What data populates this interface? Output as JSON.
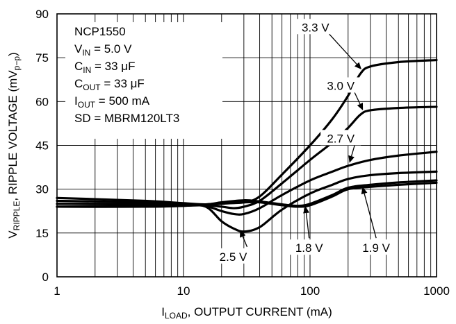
{
  "chart_data": {
    "type": "line",
    "xscale": "log",
    "xlim": [
      1,
      1000
    ],
    "ylim": [
      0,
      90
    ],
    "grid": true,
    "x_ticks": [
      {
        "value": 1,
        "label": "1"
      },
      {
        "value": 10,
        "label": "10"
      },
      {
        "value": 100,
        "label": "100"
      },
      {
        "value": 1000,
        "label": "1000"
      }
    ],
    "y_ticks": [
      {
        "value": 0,
        "label": "0"
      },
      {
        "value": 15,
        "label": "15"
      },
      {
        "value": 30,
        "label": "30"
      },
      {
        "value": 45,
        "label": "45"
      },
      {
        "value": 60,
        "label": "60"
      },
      {
        "value": 75,
        "label": "75"
      },
      {
        "value": 90,
        "label": "90"
      }
    ],
    "xlabel": {
      "main": "I",
      "sub": "LOAD",
      "rest": ", OUTPUT CURRENT (mA)"
    },
    "ylabel": {
      "main": "V",
      "sub": "RIPPLE",
      "rest": ", RIPPLE VOLTAGE (mV",
      "sub2": "p−p",
      "end": ")"
    },
    "conditions": [
      {
        "main": "NCP1550",
        "sub": "",
        "rest": ""
      },
      {
        "main": "V",
        "sub": "IN",
        "rest": " = 5.0 V"
      },
      {
        "main": "C",
        "sub": "IN",
        "rest": " = 33 μF"
      },
      {
        "main": "C",
        "sub": "OUT",
        "rest": " = 33 μF"
      },
      {
        "main": "I",
        "sub": "OUT",
        "rest": " = 500 mA"
      },
      {
        "main": "SD = MBRM120LT3",
        "sub": "",
        "rest": ""
      }
    ],
    "series": [
      {
        "name": "3.3 V",
        "x": [
          1,
          5,
          10,
          15,
          20,
          30,
          40,
          60,
          100,
          150,
          200,
          250,
          300,
          500,
          1000
        ],
        "y": [
          24,
          24,
          24.3,
          24.8,
          25.2,
          25.5,
          27.5,
          35,
          45,
          54,
          62,
          69.5,
          72,
          73.5,
          74.2
        ]
      },
      {
        "name": "3.0 V",
        "x": [
          1,
          5,
          10,
          15,
          20,
          25,
          30,
          40,
          60,
          100,
          150,
          200,
          250,
          300,
          500,
          1000
        ],
        "y": [
          24,
          24,
          24.3,
          24.5,
          24,
          23.5,
          24,
          26,
          32,
          40,
          46,
          51,
          55.5,
          57,
          57.8,
          58.2
        ]
      },
      {
        "name": "2.7 V",
        "x": [
          1,
          5,
          10,
          15,
          20,
          25,
          30,
          40,
          60,
          100,
          150,
          200,
          300,
          500,
          1000
        ],
        "y": [
          25,
          25,
          24.8,
          24.2,
          22.5,
          21.5,
          21.5,
          23.5,
          28,
          33,
          36,
          38,
          40,
          41.5,
          42.8
        ]
      },
      {
        "name": "2.5 V",
        "x": [
          1,
          5,
          10,
          15,
          20,
          25,
          30,
          40,
          60,
          100,
          150,
          200,
          300,
          500,
          1000
        ],
        "y": [
          26,
          25.5,
          25,
          24,
          19,
          16.5,
          15.5,
          17,
          23,
          28.5,
          31.5,
          33.5,
          34.8,
          35.5,
          36
        ]
      },
      {
        "name": "1.8 V",
        "x": [
          1,
          5,
          10,
          15,
          20,
          30,
          40,
          60,
          80,
          100,
          150,
          200,
          300,
          500,
          1000
        ],
        "y": [
          27,
          26,
          25.2,
          24.8,
          25.5,
          26.2,
          25.8,
          24.8,
          24.3,
          25,
          28,
          30.5,
          31.5,
          32.3,
          33
        ]
      },
      {
        "name": "1.9 V",
        "x": [
          1,
          5,
          10,
          15,
          20,
          30,
          40,
          60,
          80,
          100,
          150,
          200,
          300,
          500,
          1000
        ],
        "y": [
          24,
          24.5,
          24.5,
          24.6,
          25,
          25.5,
          25.5,
          24.5,
          24,
          24.5,
          27.5,
          30,
          30.8,
          31.5,
          32.2
        ]
      }
    ],
    "annotations": [
      {
        "text": "3.3 V",
        "text_x": 1.9,
        "text_y": 84,
        "tip_x": 255,
        "tip_y": 71
      },
      {
        "text": "3.0 V",
        "text_x": 2.1,
        "text_y": 64,
        "tip_x": 262,
        "tip_y": 57
      },
      {
        "text": "2.7 V",
        "text_x": 2.1,
        "text_y": 46,
        "tip_x": 205,
        "tip_y": 39
      },
      {
        "text": "2.5 V",
        "text_x": 1.25,
        "text_y": 5.5,
        "tip_x": 28,
        "tip_y": 16
      },
      {
        "text": "1.8 V",
        "text_x": 1.85,
        "text_y": 8.5,
        "tip_x": 92,
        "tip_y": 24.2
      },
      {
        "text": "1.9 V",
        "text_x": 2.38,
        "text_y": 8.5,
        "tip_x": 260,
        "tip_y": 30.8
      }
    ]
  }
}
